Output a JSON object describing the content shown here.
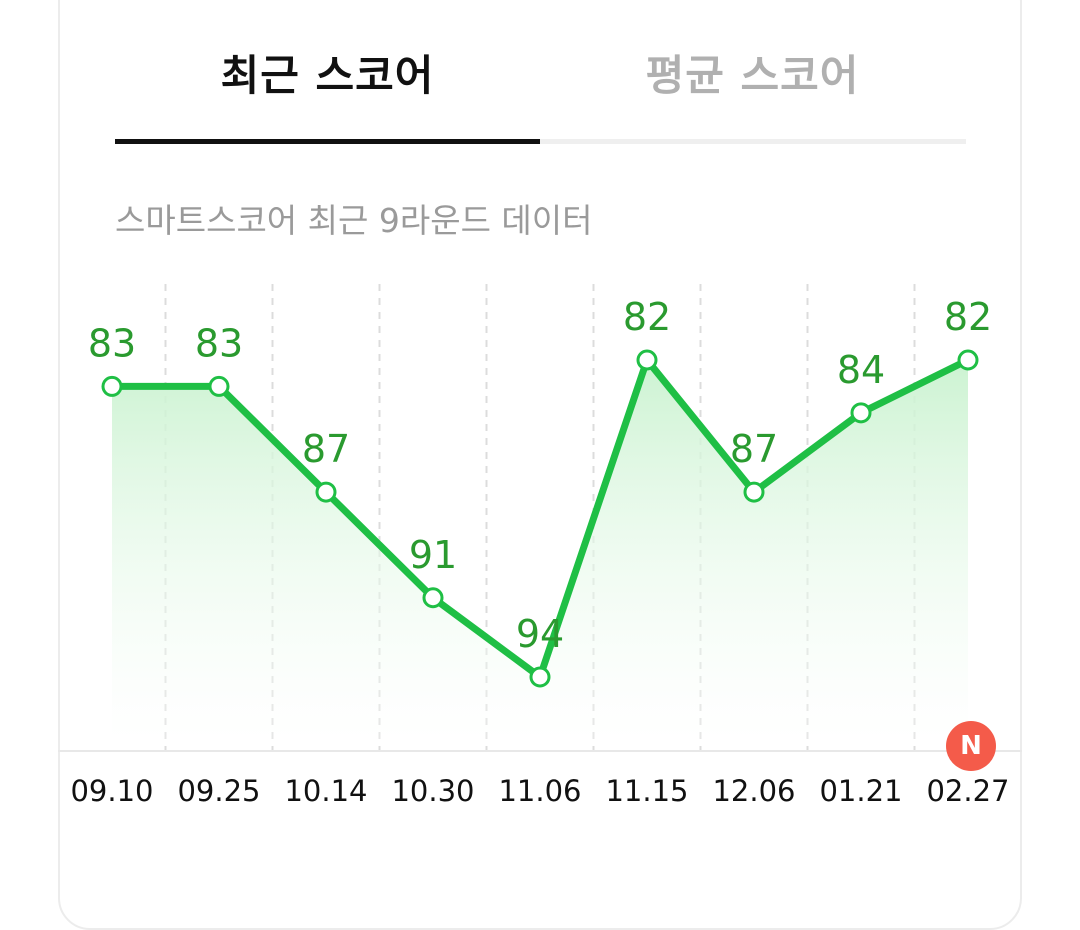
{
  "tabs": {
    "recent_label": "최근 스코어",
    "average_label": "평균 스코어",
    "active": "recent"
  },
  "subtitle": "스마트스코어 최근 9라운드 데이터",
  "badge": {
    "label": "N"
  },
  "colors": {
    "line": "#1fbf45",
    "label": "#2a9a2f",
    "badge": "#f45b4a",
    "fill_top": "#c9f2cf"
  },
  "chart_data": {
    "type": "line",
    "title": "",
    "xlabel": "",
    "ylabel": "",
    "categories": [
      "09.10",
      "09.25",
      "10.14",
      "10.30",
      "11.06",
      "11.15",
      "12.06",
      "01.21",
      "02.27"
    ],
    "values": [
      83,
      83,
      87,
      91,
      94,
      82,
      87,
      84,
      82
    ],
    "y_inverted": true,
    "ylim": [
      81,
      96
    ],
    "grid": "vertical-dashed",
    "legend": "none"
  }
}
